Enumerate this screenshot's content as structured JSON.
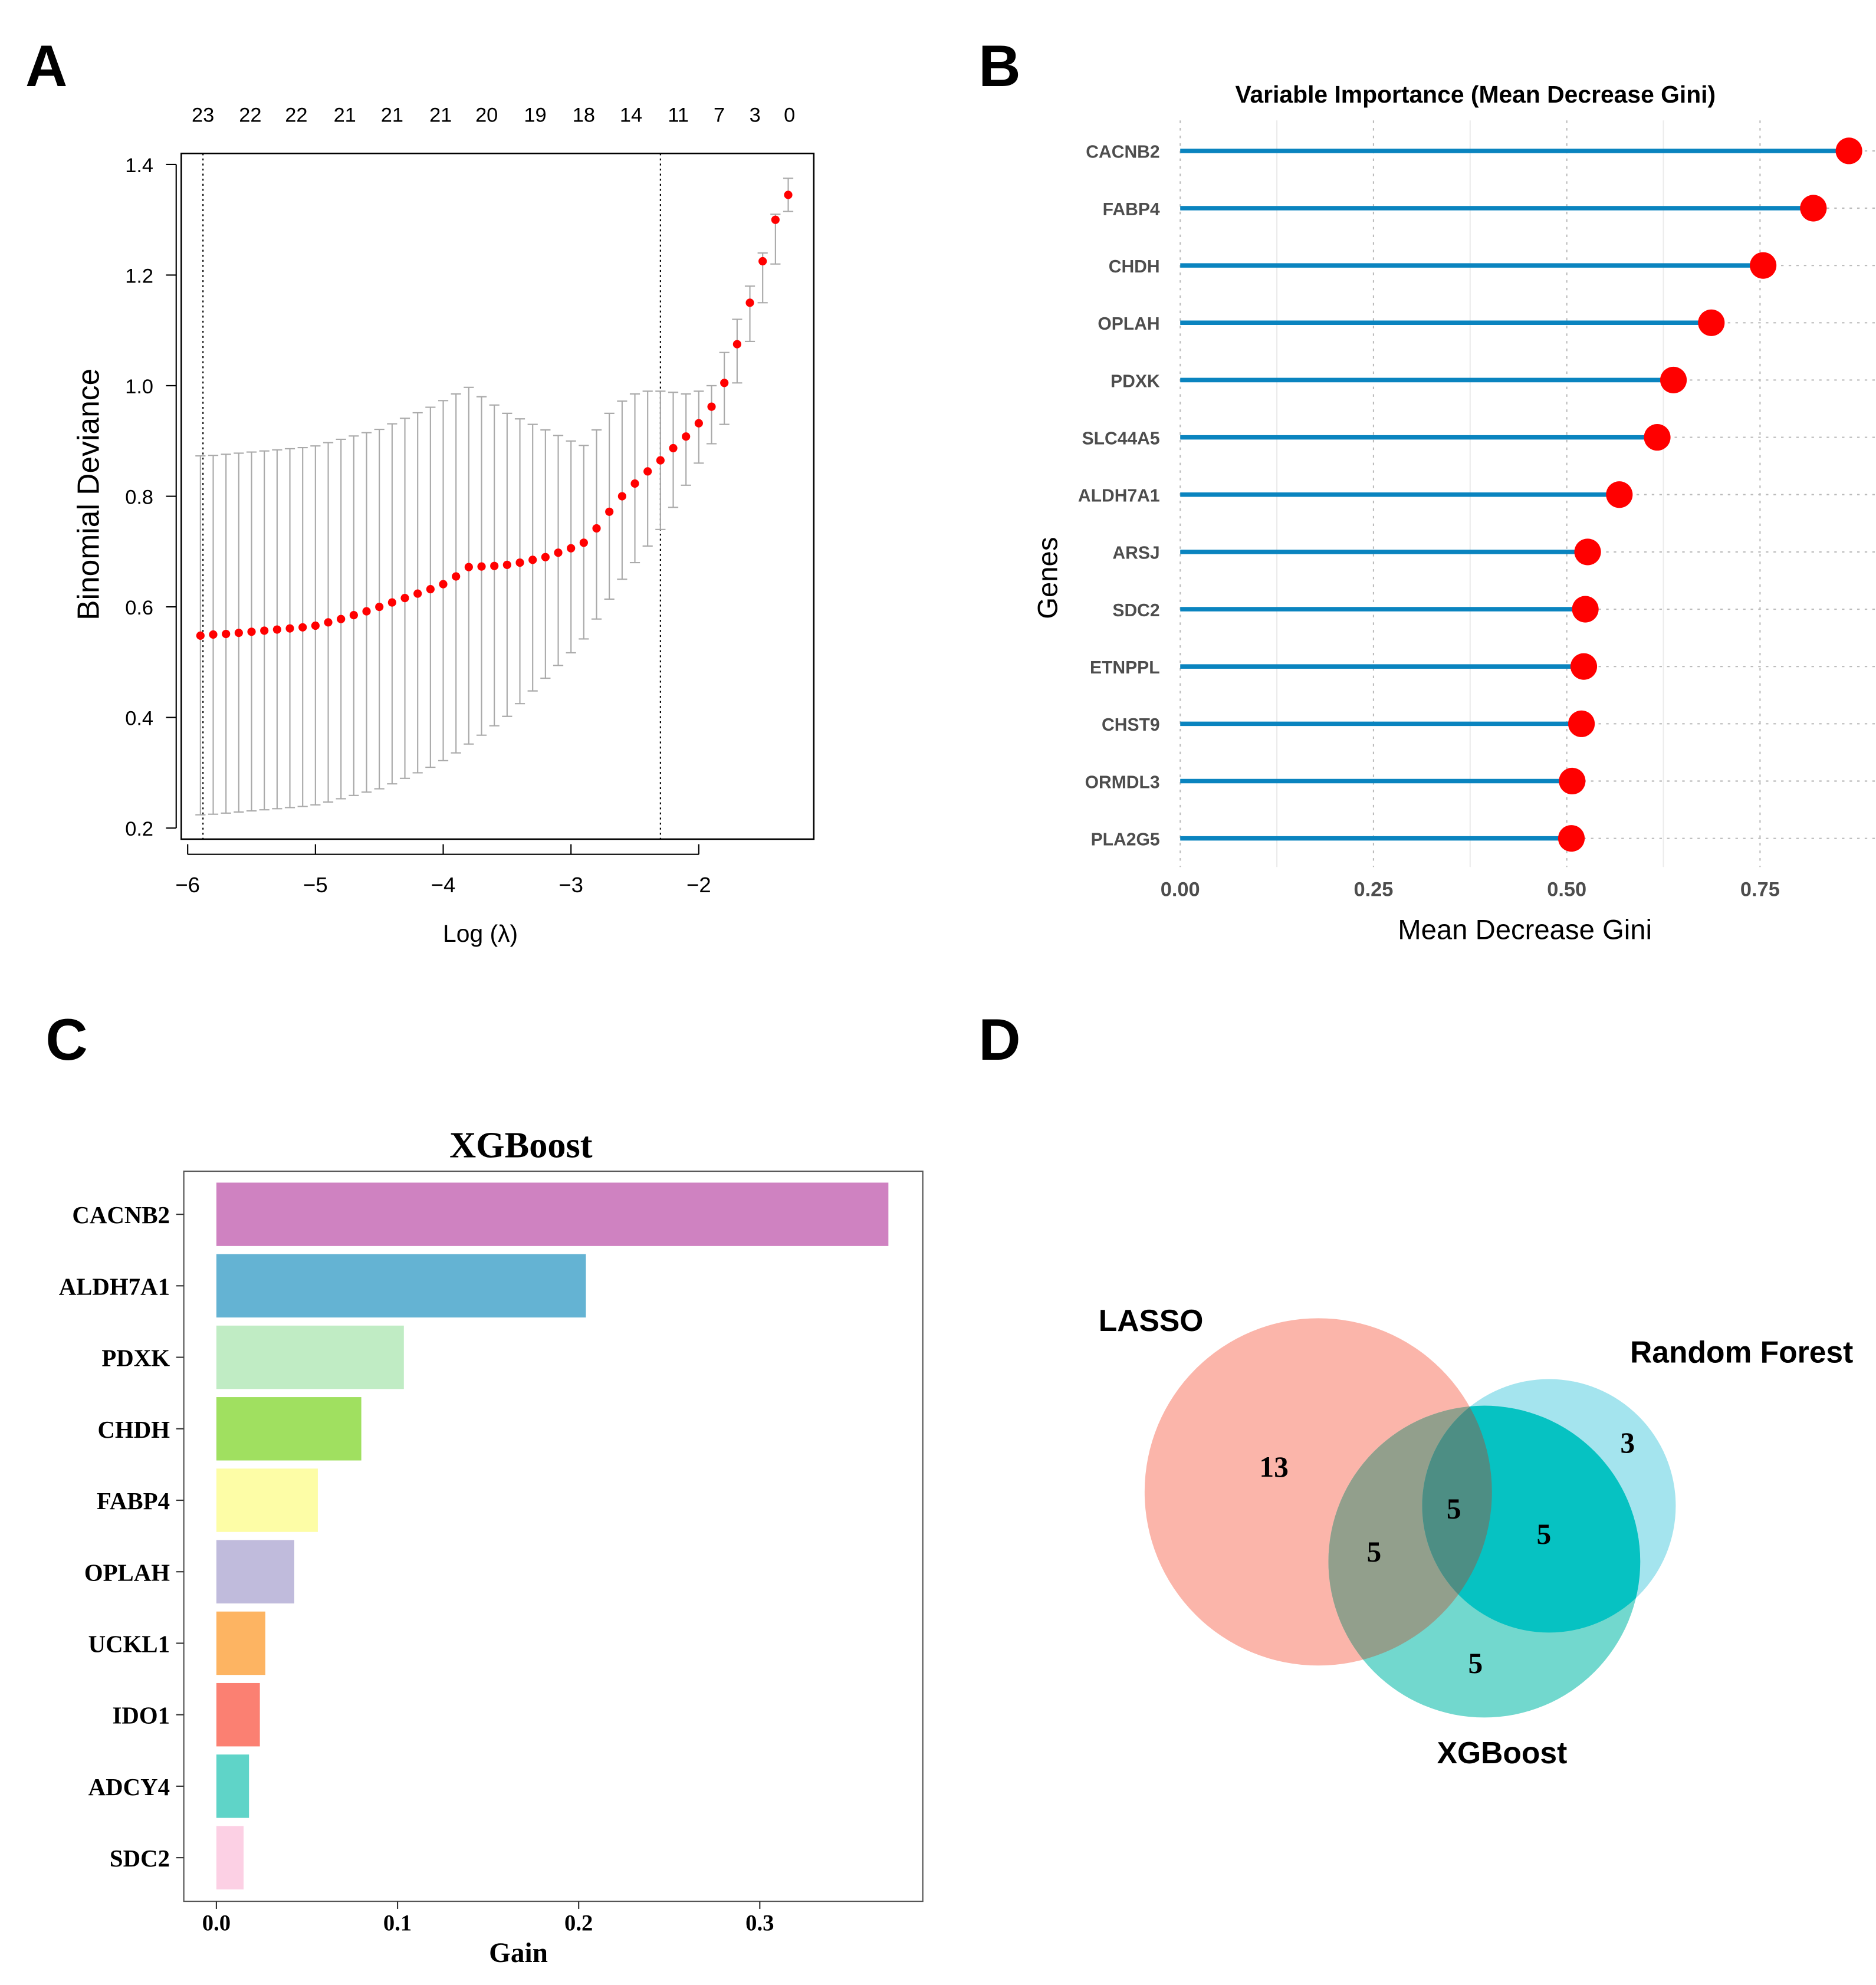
{
  "panels": {
    "a": "A",
    "b": "B",
    "c": "C",
    "d": "D"
  },
  "chart_data": [
    {
      "type": "scatter",
      "panel": "A",
      "xlabel": "Log (λ)",
      "ylabel": "Binomial Deviance",
      "xlim": [
        -6.05,
        -1.1
      ],
      "ylim": [
        0.18,
        1.42
      ],
      "xticks": [
        -6,
        -5,
        -4,
        -3,
        -2
      ],
      "yticks": [
        0.2,
        0.4,
        0.6,
        0.8,
        1.0,
        1.2,
        1.4
      ],
      "top_axis": {
        "x": [
          -5.88,
          -5.51,
          -5.15,
          -4.77,
          -4.4,
          -4.02,
          -3.66,
          -3.28,
          -2.9,
          -2.53,
          -2.16,
          -1.84,
          -1.56,
          -1.29
        ],
        "labels": [
          "23",
          "22",
          "22",
          "21",
          "21",
          "21",
          "20",
          "19",
          "18",
          "14",
          "11",
          "7",
          "3",
          "0"
        ]
      },
      "vlines": [
        -5.88,
        -2.3
      ],
      "point_color": "#ff0000",
      "errorbar_color": "#aaaaaa",
      "x": [
        -5.9,
        -5.8,
        -5.7,
        -5.6,
        -5.5,
        -5.4,
        -5.3,
        -5.2,
        -5.1,
        -5.0,
        -4.9,
        -4.8,
        -4.7,
        -4.6,
        -4.5,
        -4.4,
        -4.3,
        -4.2,
        -4.1,
        -4.0,
        -3.9,
        -3.8,
        -3.7,
        -3.6,
        -3.5,
        -3.4,
        -3.3,
        -3.2,
        -3.1,
        -3.0,
        -2.9,
        -2.8,
        -2.7,
        -2.6,
        -2.5,
        -2.4,
        -2.3,
        -2.2,
        -2.1,
        -2.0,
        -1.9,
        -1.8,
        -1.7,
        -1.6,
        -1.5,
        -1.4,
        -1.3
      ],
      "mean": [
        0.548,
        0.55,
        0.551,
        0.553,
        0.555,
        0.557,
        0.559,
        0.561,
        0.563,
        0.566,
        0.572,
        0.578,
        0.585,
        0.592,
        0.6,
        0.608,
        0.616,
        0.624,
        0.632,
        0.641,
        0.655,
        0.672,
        0.673,
        0.674,
        0.676,
        0.68,
        0.685,
        0.69,
        0.698,
        0.706,
        0.716,
        0.742,
        0.772,
        0.8,
        0.823,
        0.845,
        0.865,
        0.887,
        0.908,
        0.932,
        0.962,
        1.005,
        1.075,
        1.15,
        1.225,
        1.3,
        1.345
      ],
      "upper": [
        0.873,
        0.874,
        0.876,
        0.878,
        0.88,
        0.882,
        0.884,
        0.886,
        0.888,
        0.891,
        0.897,
        0.903,
        0.909,
        0.915,
        0.921,
        0.931,
        0.941,
        0.951,
        0.961,
        0.973,
        0.985,
        0.997,
        0.98,
        0.965,
        0.95,
        0.94,
        0.93,
        0.92,
        0.91,
        0.9,
        0.892,
        0.92,
        0.95,
        0.972,
        0.985,
        0.99,
        0.99,
        0.988,
        0.985,
        0.99,
        1.0,
        1.06,
        1.12,
        1.18,
        1.24,
        1.31,
        1.375
      ],
      "lower": [
        0.224,
        0.225,
        0.227,
        0.229,
        0.231,
        0.233,
        0.235,
        0.237,
        0.239,
        0.242,
        0.247,
        0.253,
        0.259,
        0.265,
        0.271,
        0.28,
        0.29,
        0.3,
        0.31,
        0.322,
        0.336,
        0.352,
        0.368,
        0.385,
        0.402,
        0.425,
        0.448,
        0.471,
        0.494,
        0.517,
        0.542,
        0.578,
        0.614,
        0.65,
        0.68,
        0.71,
        0.74,
        0.78,
        0.82,
        0.86,
        0.895,
        0.93,
        1.005,
        1.08,
        1.15,
        1.22,
        1.315
      ]
    },
    {
      "type": "lollipop",
      "panel": "B",
      "title": "Variable Importance (Mean Decrease Gini)",
      "xlabel": "Mean Decrease Gini",
      "ylabel": "Genes",
      "xticks": [
        "0.00",
        "0.25",
        "0.50",
        "0.75"
      ],
      "xlim": [
        -0.01,
        0.9
      ],
      "grid": true,
      "stem_color": "#0a84bf",
      "point_color": "#ff0000",
      "categories": [
        "CACNB2",
        "FABP4",
        "CHDH",
        "OPLAH",
        "PDXK",
        "SLC44A5",
        "ALDH7A1",
        "ARSJ",
        "SDC2",
        "ETNPPL",
        "CHST9",
        "ORMDL3",
        "PLA2G5"
      ],
      "values": [
        0.865,
        0.819,
        0.754,
        0.687,
        0.638,
        0.617,
        0.568,
        0.527,
        0.524,
        0.522,
        0.519,
        0.507,
        0.506
      ]
    },
    {
      "type": "bar",
      "panel": "C",
      "title": "XGBoost",
      "xlabel": "Gain",
      "xticks": [
        "0.0",
        "0.1",
        "0.2",
        "0.3"
      ],
      "xlim": [
        -0.018,
        0.39
      ],
      "categories": [
        "CACNB2",
        "ALDH7A1",
        "PDXK",
        "CHDH",
        "FABP4",
        "OPLAH",
        "UCKL1",
        "IDO1",
        "ADCY4",
        "SDC2"
      ],
      "values": [
        0.371,
        0.204,
        0.1035,
        0.08,
        0.056,
        0.043,
        0.027,
        0.024,
        0.018,
        0.015
      ],
      "colors": [
        "#cf82c1",
        "#64b3d3",
        "#c0ecc4",
        "#a0e060",
        "#fdfda6",
        "#c0bbdc",
        "#fdb462",
        "#fb8072",
        "#5fd4c8",
        "#fcd0e4"
      ]
    },
    {
      "type": "venn",
      "panel": "D",
      "sets": [
        {
          "name": "LASSO",
          "color": "#fbb5aa"
        },
        {
          "name": "Random Forest",
          "color": "#a4e4ee"
        },
        {
          "name": "XGBoost",
          "color": "#72d8ce"
        }
      ],
      "regions": {
        "LASSO_only": "13",
        "RF_only": "3",
        "XGBoost_only": "5",
        "LASSO_XGBoost": "5",
        "RF_XGBoost": "5",
        "all_three": "5"
      },
      "overlap_colors": {
        "LASSO_XGBoost": "#929f8c",
        "RF_XGBoost": "#06c2c2",
        "all_three": "#4d8e84"
      }
    }
  ]
}
